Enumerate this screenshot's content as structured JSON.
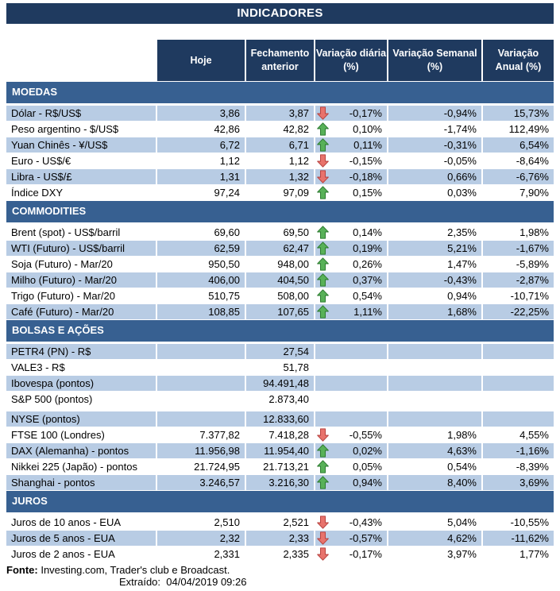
{
  "title": "INDICADORES",
  "columns": {
    "hoje": "Hoje",
    "fechamento": "Fechamento\nanterior",
    "var_diaria": "Variação diária\n(%)",
    "var_semanal": "Variação Semanal\n(%)",
    "var_anual": "Variação\nAnual (%)"
  },
  "colors": {
    "header_navy": "#1F3A5F",
    "section_blue": "#376091",
    "row_shaded": "#B8CCE4",
    "arrow_up_fill": "#58B158",
    "arrow_up_stroke": "#2E7D32",
    "arrow_down_fill": "#E8736C",
    "arrow_down_stroke": "#B94441"
  },
  "sections": [
    {
      "name": "MOEDAS",
      "zebra_first_shaded": true,
      "rows": [
        {
          "label": "Dólar - R$/US$",
          "hoje": "3,86",
          "fechamento": "3,87",
          "arrow": "down",
          "var_diaria": "-0,17%",
          "var_semanal": "-0,94%",
          "var_anual": "15,73%"
        },
        {
          "label": "Peso argentino - $/US$",
          "hoje": "42,86",
          "fechamento": "42,82",
          "arrow": "up",
          "var_diaria": "0,10%",
          "var_semanal": "-1,74%",
          "var_anual": "112,49%"
        },
        {
          "label": "Yuan Chinês - ¥/US$",
          "hoje": "6,72",
          "fechamento": "6,71",
          "arrow": "up",
          "var_diaria": "0,11%",
          "var_semanal": "-0,31%",
          "var_anual": "6,54%"
        },
        {
          "label": "Euro - US$/€",
          "hoje": "1,12",
          "fechamento": "1,12",
          "arrow": "down",
          "var_diaria": "-0,15%",
          "var_semanal": "-0,05%",
          "var_anual": "-8,64%"
        },
        {
          "label": "Libra - US$/£",
          "hoje": "1,31",
          "fechamento": "1,32",
          "arrow": "down",
          "var_diaria": "-0,18%",
          "var_semanal": "0,66%",
          "var_anual": "-6,76%"
        },
        {
          "label": "Índice DXY",
          "hoje": "97,24",
          "fechamento": "97,09",
          "arrow": "up",
          "var_diaria": "0,15%",
          "var_semanal": "0,03%",
          "var_anual": "7,90%"
        }
      ]
    },
    {
      "name": "COMMODITIES",
      "zebra_first_shaded": false,
      "rows": [
        {
          "label": "Brent (spot) - US$/barril",
          "hoje": "69,60",
          "fechamento": "69,50",
          "arrow": "up",
          "var_diaria": "0,14%",
          "var_semanal": "2,35%",
          "var_anual": "1,98%"
        },
        {
          "label": "WTI (Futuro) - US$/barril",
          "hoje": "62,59",
          "fechamento": "62,47",
          "arrow": "up",
          "var_diaria": "0,19%",
          "var_semanal": "5,21%",
          "var_anual": "-1,67%"
        },
        {
          "label": "Soja (Futuro) - Mar/20",
          "hoje": "950,50",
          "fechamento": "948,00",
          "arrow": "up",
          "var_diaria": "0,26%",
          "var_semanal": "1,47%",
          "var_anual": "-5,89%"
        },
        {
          "label": "Milho (Futuro) - Mar/20",
          "hoje": "406,00",
          "fechamento": "404,50",
          "arrow": "up",
          "var_diaria": "0,37%",
          "var_semanal": "-0,43%",
          "var_anual": "-2,87%"
        },
        {
          "label": "Trigo (Futuro) - Mar/20",
          "hoje": "510,75",
          "fechamento": "508,00",
          "arrow": "up",
          "var_diaria": "0,54%",
          "var_semanal": "0,94%",
          "var_anual": "-10,71%"
        },
        {
          "label": "Café (Futuro) - Mar/20",
          "hoje": "108,85",
          "fechamento": "107,65",
          "arrow": "up",
          "var_diaria": "1,11%",
          "var_semanal": "1,68%",
          "var_anual": "-22,25%"
        }
      ]
    },
    {
      "name": "BOLSAS E AÇÕES",
      "zebra_first_shaded": true,
      "rows": [
        {
          "label": "PETR4 (PN) - R$",
          "hoje": "",
          "fechamento": "27,54",
          "arrow": null,
          "var_diaria": "",
          "var_semanal": "",
          "var_anual": ""
        },
        {
          "label": "VALE3 - R$",
          "hoje": "",
          "fechamento": "51,78",
          "arrow": null,
          "var_diaria": "",
          "var_semanal": "",
          "var_anual": ""
        },
        {
          "label": "Ibovespa (pontos)",
          "hoje": "",
          "fechamento": "94.491,48",
          "arrow": null,
          "var_diaria": "",
          "var_semanal": "",
          "var_anual": ""
        },
        {
          "label": "S&P 500 (pontos)",
          "hoje": "",
          "fechamento": "2.873,40",
          "arrow": null,
          "var_diaria": "",
          "var_semanal": "",
          "var_anual": "",
          "gap_after": true
        },
        {
          "label": "NYSE (pontos)",
          "hoje": "",
          "fechamento": "12.833,60",
          "arrow": null,
          "var_diaria": "",
          "var_semanal": "",
          "var_anual": ""
        },
        {
          "label": "FTSE 100 (Londres)",
          "hoje": "7.377,82",
          "fechamento": "7.418,28",
          "arrow": "down",
          "var_diaria": "-0,55%",
          "var_semanal": "1,98%",
          "var_anual": "4,55%"
        },
        {
          "label": "DAX (Alemanha) - pontos",
          "hoje": "11.956,98",
          "fechamento": "11.954,40",
          "arrow": "up",
          "var_diaria": "0,02%",
          "var_semanal": "4,63%",
          "var_anual": "-1,16%"
        },
        {
          "label": "Nikkei 225 (Japão) - pontos",
          "hoje": "21.724,95",
          "fechamento": "21.713,21",
          "arrow": "up",
          "var_diaria": "0,05%",
          "var_semanal": "0,54%",
          "var_anual": "-8,39%"
        },
        {
          "label": "Shanghai - pontos",
          "hoje": "3.246,57",
          "fechamento": "3.216,30",
          "arrow": "up",
          "var_diaria": "0,94%",
          "var_semanal": "8,40%",
          "var_anual": "3,69%"
        }
      ]
    },
    {
      "name": "JUROS",
      "zebra_first_shaded": false,
      "rows": [
        {
          "label": "Juros de 10 anos - EUA",
          "hoje": "2,510",
          "fechamento": "2,521",
          "arrow": "down",
          "var_diaria": "-0,43%",
          "var_semanal": "5,04%",
          "var_anual": "-10,55%"
        },
        {
          "label": "Juros de 5 anos - EUA",
          "hoje": "2,32",
          "fechamento": "2,33",
          "arrow": "down",
          "var_diaria": "-0,57%",
          "var_semanal": "4,62%",
          "var_anual": "-11,62%"
        },
        {
          "label": "Juros de 2 anos - EUA",
          "hoje": "2,331",
          "fechamento": "2,335",
          "arrow": "down",
          "var_diaria": "-0,17%",
          "var_semanal": "3,97%",
          "var_anual": "1,77%"
        }
      ]
    }
  ],
  "footer": {
    "fonte_label": "Fonte:",
    "fonte_text": " Investing.com, Trader's club e Broadcast.",
    "extraido_label": "Extraído:",
    "extraido_value": "04/04/2019 09:26"
  }
}
